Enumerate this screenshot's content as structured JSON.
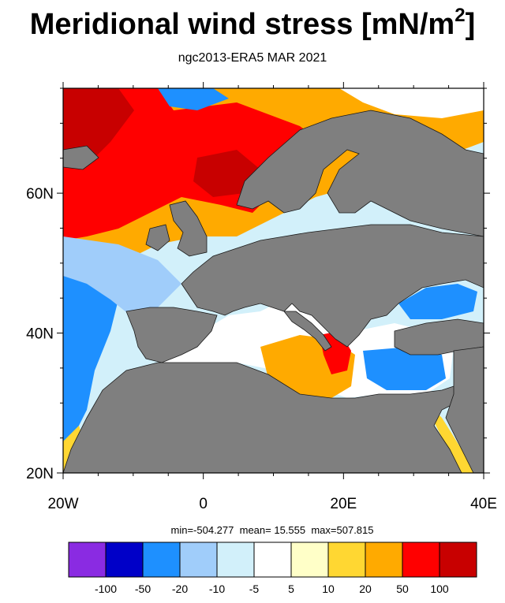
{
  "title": "Meridional wind stress [mN/m",
  "title_superscript": "2",
  "title_suffix": "]",
  "subtitle": "ngc2013-ERA5  MAR 2021",
  "map": {
    "lat_labels": [
      "60N",
      "40N",
      "20N"
    ],
    "lon_labels": [
      "20W",
      "0",
      "20E",
      "40E"
    ],
    "lat_values": [
      60,
      40,
      20
    ],
    "lon_values": [
      -20,
      0,
      20,
      40
    ],
    "extent": {
      "lon": [
        -20,
        40
      ],
      "lat": [
        20,
        75
      ]
    },
    "land_color": "#7f7f7f",
    "coast_color": "#1a1a1a"
  },
  "stats": {
    "min_label": "min=",
    "min": "-504.277",
    "mean_label": "mean=",
    "mean": " 15.555",
    "max_label": "max=",
    "max": "507.815"
  },
  "colorbar": {
    "colors": [
      "#8a2be2",
      "#0000c8",
      "#1e90ff",
      "#a0cdfa",
      "#d2f0fa",
      "#ffffff",
      "#ffffc8",
      "#ffd732",
      "#ffaa00",
      "#ff0000",
      "#c80000"
    ],
    "labels": [
      "-100",
      "-50",
      "-20",
      "-10",
      "-5",
      "5",
      "10",
      "20",
      "50",
      "100"
    ]
  }
}
